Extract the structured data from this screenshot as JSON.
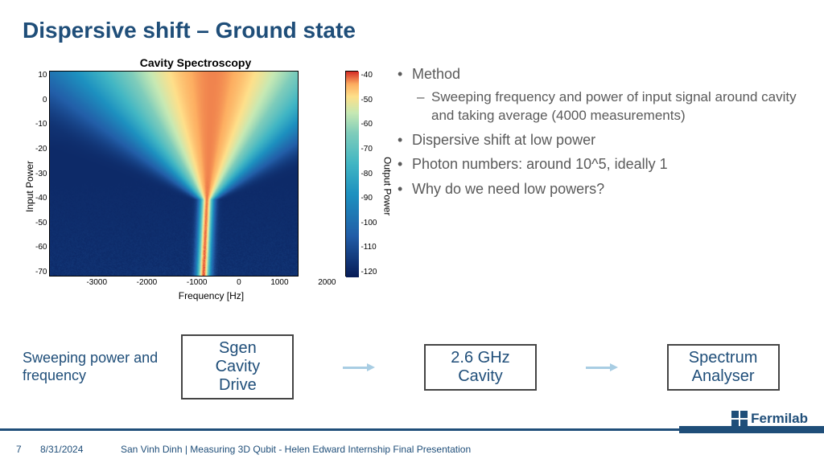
{
  "title": "Dispersive shift – Ground state",
  "chart": {
    "title": "Cavity Spectroscopy",
    "ylabel": "Input Power",
    "xlabel": "Frequency [Hz]",
    "cblabel": "Output Power",
    "type": "heatmap",
    "xlim": [
      -3500,
      2000
    ],
    "ylim": [
      -70,
      10
    ],
    "xticks": [
      "-3000",
      "-2000",
      "-1000",
      "0",
      "1000",
      "2000"
    ],
    "yticks": [
      "10",
      "0",
      "-10",
      "-20",
      "-30",
      "-40",
      "-50",
      "-60",
      "-70"
    ],
    "cbticks": [
      "-40",
      "-50",
      "-60",
      "-70",
      "-80",
      "-90",
      "-100",
      "-110",
      "-120"
    ],
    "stops": [
      {
        "v": 0.0,
        "c": "#081d58"
      },
      {
        "v": 0.2,
        "c": "#225ea8"
      },
      {
        "v": 0.4,
        "c": "#1d91c0"
      },
      {
        "v": 0.55,
        "c": "#41b6c4"
      },
      {
        "v": 0.7,
        "c": "#7fcdbb"
      },
      {
        "v": 0.8,
        "c": "#c7e9b4"
      },
      {
        "v": 0.88,
        "c": "#fee08b"
      },
      {
        "v": 0.94,
        "c": "#fdae61"
      },
      {
        "v": 1.0,
        "c": "#d73027"
      }
    ],
    "background_color": "#ffffff",
    "label_fontsize": 12,
    "tick_fontsize": 10,
    "title_fontsize": 14
  },
  "bullets": [
    {
      "lvl": 1,
      "t": "Method"
    },
    {
      "lvl": 2,
      "t": "Sweeping frequency and power of input signal around cavity and taking average (4000 measurements)"
    },
    {
      "lvl": 1,
      "t": "Dispersive shift at low power"
    },
    {
      "lvl": 1,
      "t": "Photon numbers: around 10^5, ideally 1"
    },
    {
      "lvl": 1,
      "t": "Why do we need low powers?"
    }
  ],
  "flow": {
    "label": "Sweeping power and frequency",
    "boxes": [
      "Sgen\nCavity\nDrive",
      "2.6 GHz\nCavity",
      "Spectrum\nAnalyser"
    ],
    "box_border": "#444444",
    "box_text": "#1f4e79",
    "arrow_color": "#a8cde3"
  },
  "footer": {
    "page": "7",
    "date": "8/31/2024",
    "text": "San Vinh Dinh | Measuring 3D Qubit - Helen Edward Internship Final Presentation",
    "logo": "Fermilab",
    "color": "#1f4e79"
  }
}
